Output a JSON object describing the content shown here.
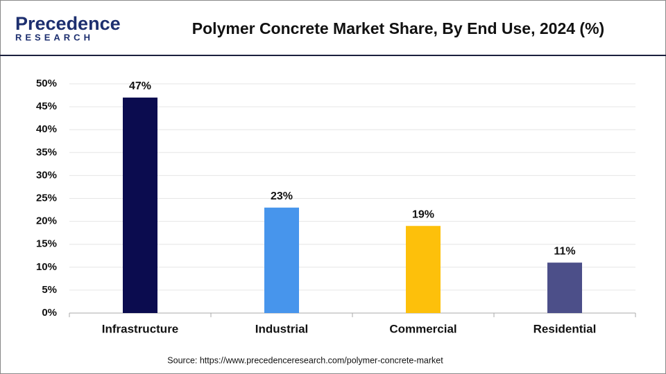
{
  "logo": {
    "name": "Precedence",
    "sub": "RESEARCH"
  },
  "chart_data": {
    "type": "bar",
    "title": "Polymer Concrete Market Share, By End Use, 2024 (%)",
    "categories": [
      "Infrastructure",
      "Industrial",
      "Commercial",
      "Residential"
    ],
    "values": [
      47,
      23,
      19,
      11
    ],
    "value_labels": [
      "47%",
      "23%",
      "19%",
      "11%"
    ],
    "colors": [
      "#0b0c4f",
      "#4795ec",
      "#fdc00b",
      "#4c4f89"
    ],
    "ylim": [
      0,
      50
    ],
    "yticks": [
      {
        "value": 0,
        "label": "0%"
      },
      {
        "value": 5,
        "label": "5%"
      },
      {
        "value": 10,
        "label": "10%"
      },
      {
        "value": 15,
        "label": "15%"
      },
      {
        "value": 20,
        "label": "20%"
      },
      {
        "value": 25,
        "label": "25%"
      },
      {
        "value": 30,
        "label": "30%"
      },
      {
        "value": 35,
        "label": "35%"
      },
      {
        "value": 40,
        "label": "40%"
      },
      {
        "value": 45,
        "label": "45%"
      },
      {
        "value": 50,
        "label": "50%"
      }
    ],
    "grid": true,
    "source": "Source: https://www.precedenceresearch.com/polymer-concrete-market"
  }
}
